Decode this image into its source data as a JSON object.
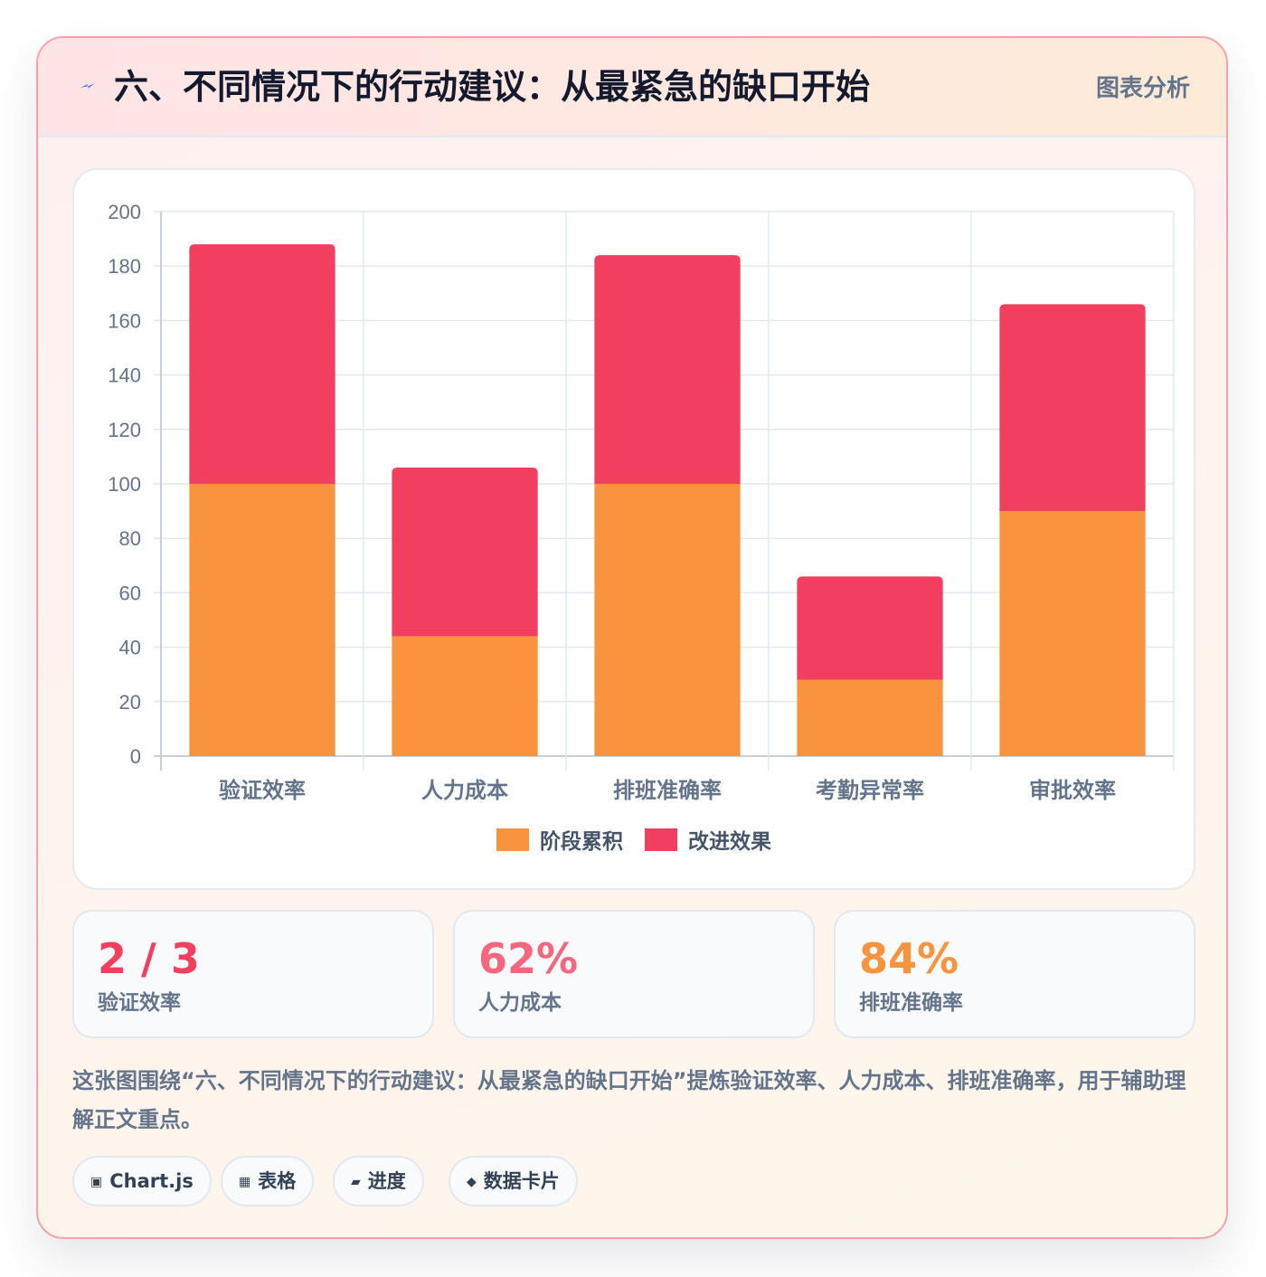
{
  "header": {
    "title": "六、不同情况下的行动建议：从最紧急的缺口开始",
    "tag": "图表分析",
    "icon": "lightning-icon"
  },
  "chart_data": {
    "type": "bar",
    "stacked": true,
    "categories": [
      "验证效率",
      "人力成本",
      "排班准确率",
      "考勤异常率",
      "审批效率"
    ],
    "series": [
      {
        "name": "阶段累积",
        "color": "#f9933e",
        "values": [
          100,
          44,
          100,
          28,
          90
        ]
      },
      {
        "name": "改进效果",
        "color": "#f23f5f",
        "values": [
          88,
          62,
          84,
          38,
          76
        ]
      }
    ],
    "ylim": [
      0,
      200
    ],
    "yticks": [
      "0",
      "20",
      "40",
      "60",
      "80",
      "100",
      "120",
      "140",
      "160",
      "180",
      "200"
    ],
    "grid": true,
    "legend_position": "bottom"
  },
  "stats": [
    {
      "value": "2 / 3",
      "label": "验证效率",
      "color": "#f23f5f"
    },
    {
      "value": "62%",
      "label": "人力成本",
      "color": "#f4677e"
    },
    {
      "value": "84%",
      "label": "排班准确率",
      "color": "#f9933e"
    }
  ],
  "description": "这张图围绕“六、不同情况下的行动建议：从最紧急的缺口开始”提炼验证效率、人力成本、排班准确率，用于辅助理解正文重点。",
  "chips": [
    {
      "icon": "▣",
      "icon_name": "chart-icon",
      "label": "Chart.js"
    },
    {
      "icon": "▦",
      "icon_name": "table-icon",
      "label": "表格"
    },
    {
      "icon": "▰",
      "icon_name": "progress-icon",
      "label": "进度"
    },
    {
      "icon": "◆",
      "icon_name": "diamond-icon",
      "label": "数据卡片"
    }
  ]
}
